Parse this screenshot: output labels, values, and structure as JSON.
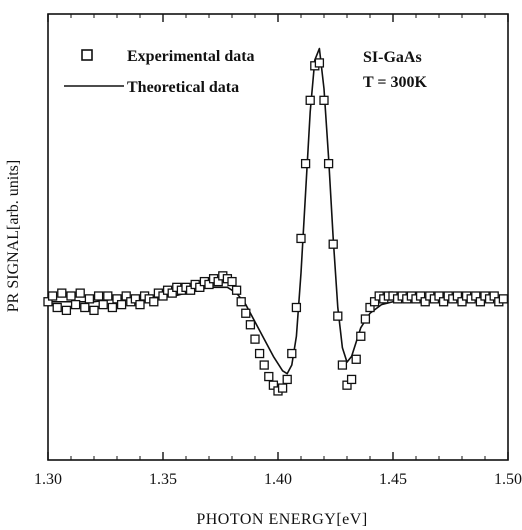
{
  "chart_data": {
    "type": "scatter",
    "title": "",
    "xlabel": "PHOTON ENERGY[eV]",
    "ylabel": "PR SIGNAL[arb. units]",
    "xlim": [
      1.3,
      1.5
    ],
    "ylim": [
      -0.55,
      1.0
    ],
    "xticks": [
      1.3,
      1.35,
      1.4,
      1.45,
      1.5
    ],
    "xtick_labels": [
      "1.30",
      "1.35",
      "1.40",
      "1.45",
      "1.50"
    ],
    "y_tick_labels_shown": false,
    "grid": false,
    "legend": {
      "placement": "top-left",
      "entries": [
        {
          "label": "Experimental data",
          "marker": "open-square"
        },
        {
          "label": "Theoretical data",
          "marker": "line"
        }
      ]
    },
    "annotations": [
      "SI-GaAs",
      "T = 300K"
    ],
    "series": [
      {
        "name": "Experimental data",
        "style": "open-square",
        "points": [
          [
            1.3,
            0.0
          ],
          [
            1.302,
            0.02
          ],
          [
            1.304,
            -0.02
          ],
          [
            1.306,
            0.03
          ],
          [
            1.308,
            -0.03
          ],
          [
            1.31,
            0.02
          ],
          [
            1.312,
            -0.01
          ],
          [
            1.314,
            0.03
          ],
          [
            1.316,
            -0.02
          ],
          [
            1.318,
            0.01
          ],
          [
            1.32,
            -0.03
          ],
          [
            1.322,
            0.02
          ],
          [
            1.324,
            -0.01
          ],
          [
            1.326,
            0.02
          ],
          [
            1.328,
            -0.02
          ],
          [
            1.33,
            0.01
          ],
          [
            1.332,
            -0.01
          ],
          [
            1.334,
            0.02
          ],
          [
            1.336,
            0.0
          ],
          [
            1.338,
            0.01
          ],
          [
            1.34,
            -0.01
          ],
          [
            1.342,
            0.02
          ],
          [
            1.344,
            0.01
          ],
          [
            1.346,
            0.0
          ],
          [
            1.348,
            0.03
          ],
          [
            1.35,
            0.02
          ],
          [
            1.352,
            0.04
          ],
          [
            1.354,
            0.03
          ],
          [
            1.356,
            0.05
          ],
          [
            1.358,
            0.04
          ],
          [
            1.36,
            0.05
          ],
          [
            1.362,
            0.04
          ],
          [
            1.364,
            0.06
          ],
          [
            1.366,
            0.05
          ],
          [
            1.368,
            0.07
          ],
          [
            1.37,
            0.06
          ],
          [
            1.372,
            0.08
          ],
          [
            1.374,
            0.07
          ],
          [
            1.376,
            0.09
          ],
          [
            1.378,
            0.08
          ],
          [
            1.38,
            0.07
          ],
          [
            1.382,
            0.04
          ],
          [
            1.384,
            0.0
          ],
          [
            1.386,
            -0.04
          ],
          [
            1.388,
            -0.08
          ],
          [
            1.39,
            -0.13
          ],
          [
            1.392,
            -0.18
          ],
          [
            1.394,
            -0.22
          ],
          [
            1.396,
            -0.26
          ],
          [
            1.398,
            -0.29
          ],
          [
            1.4,
            -0.31
          ],
          [
            1.402,
            -0.3
          ],
          [
            1.404,
            -0.27
          ],
          [
            1.406,
            -0.18
          ],
          [
            1.408,
            -0.02
          ],
          [
            1.41,
            0.22
          ],
          [
            1.412,
            0.48
          ],
          [
            1.414,
            0.7
          ],
          [
            1.416,
            0.82
          ],
          [
            1.418,
            0.83
          ],
          [
            1.42,
            0.7
          ],
          [
            1.422,
            0.48
          ],
          [
            1.424,
            0.2
          ],
          [
            1.426,
            -0.05
          ],
          [
            1.428,
            -0.22
          ],
          [
            1.43,
            -0.29
          ],
          [
            1.432,
            -0.27
          ],
          [
            1.434,
            -0.2
          ],
          [
            1.436,
            -0.12
          ],
          [
            1.438,
            -0.06
          ],
          [
            1.44,
            -0.02
          ],
          [
            1.442,
            0.0
          ],
          [
            1.444,
            0.02
          ],
          [
            1.446,
            0.01
          ],
          [
            1.448,
            0.02
          ],
          [
            1.45,
            0.02
          ],
          [
            1.452,
            0.01
          ],
          [
            1.454,
            0.02
          ],
          [
            1.456,
            0.01
          ],
          [
            1.458,
            0.02
          ],
          [
            1.46,
            0.01
          ],
          [
            1.462,
            0.02
          ],
          [
            1.464,
            0.0
          ],
          [
            1.466,
            0.02
          ],
          [
            1.468,
            0.01
          ],
          [
            1.47,
            0.02
          ],
          [
            1.472,
            0.0
          ],
          [
            1.474,
            0.02
          ],
          [
            1.476,
            0.01
          ],
          [
            1.478,
            0.02
          ],
          [
            1.48,
            0.0
          ],
          [
            1.482,
            0.02
          ],
          [
            1.484,
            0.01
          ],
          [
            1.486,
            0.02
          ],
          [
            1.488,
            0.0
          ],
          [
            1.49,
            0.02
          ],
          [
            1.492,
            0.01
          ],
          [
            1.494,
            0.02
          ],
          [
            1.496,
            0.0
          ],
          [
            1.498,
            0.01
          ]
        ]
      },
      {
        "name": "Theoretical data",
        "style": "line",
        "points": [
          [
            1.3,
            0.0
          ],
          [
            1.31,
            0.0
          ],
          [
            1.32,
            0.0
          ],
          [
            1.33,
            0.01
          ],
          [
            1.34,
            0.01
          ],
          [
            1.35,
            0.02
          ],
          [
            1.355,
            0.02
          ],
          [
            1.36,
            0.03
          ],
          [
            1.365,
            0.04
          ],
          [
            1.37,
            0.05
          ],
          [
            1.374,
            0.05
          ],
          [
            1.378,
            0.05
          ],
          [
            1.382,
            0.03
          ],
          [
            1.386,
            -0.01
          ],
          [
            1.39,
            -0.07
          ],
          [
            1.394,
            -0.13
          ],
          [
            1.398,
            -0.19
          ],
          [
            1.402,
            -0.24
          ],
          [
            1.404,
            -0.25
          ],
          [
            1.406,
            -0.22
          ],
          [
            1.408,
            -0.12
          ],
          [
            1.41,
            0.1
          ],
          [
            1.412,
            0.38
          ],
          [
            1.414,
            0.66
          ],
          [
            1.416,
            0.84
          ],
          [
            1.418,
            0.88
          ],
          [
            1.42,
            0.74
          ],
          [
            1.422,
            0.5
          ],
          [
            1.424,
            0.22
          ],
          [
            1.426,
            -0.02
          ],
          [
            1.428,
            -0.16
          ],
          [
            1.43,
            -0.21
          ],
          [
            1.432,
            -0.19
          ],
          [
            1.434,
            -0.14
          ],
          [
            1.436,
            -0.09
          ],
          [
            1.44,
            -0.04
          ],
          [
            1.445,
            -0.01
          ],
          [
            1.45,
            0.0
          ],
          [
            1.46,
            0.01
          ],
          [
            1.47,
            0.01
          ],
          [
            1.48,
            0.01
          ],
          [
            1.49,
            0.01
          ],
          [
            1.5,
            0.01
          ]
        ]
      }
    ]
  }
}
